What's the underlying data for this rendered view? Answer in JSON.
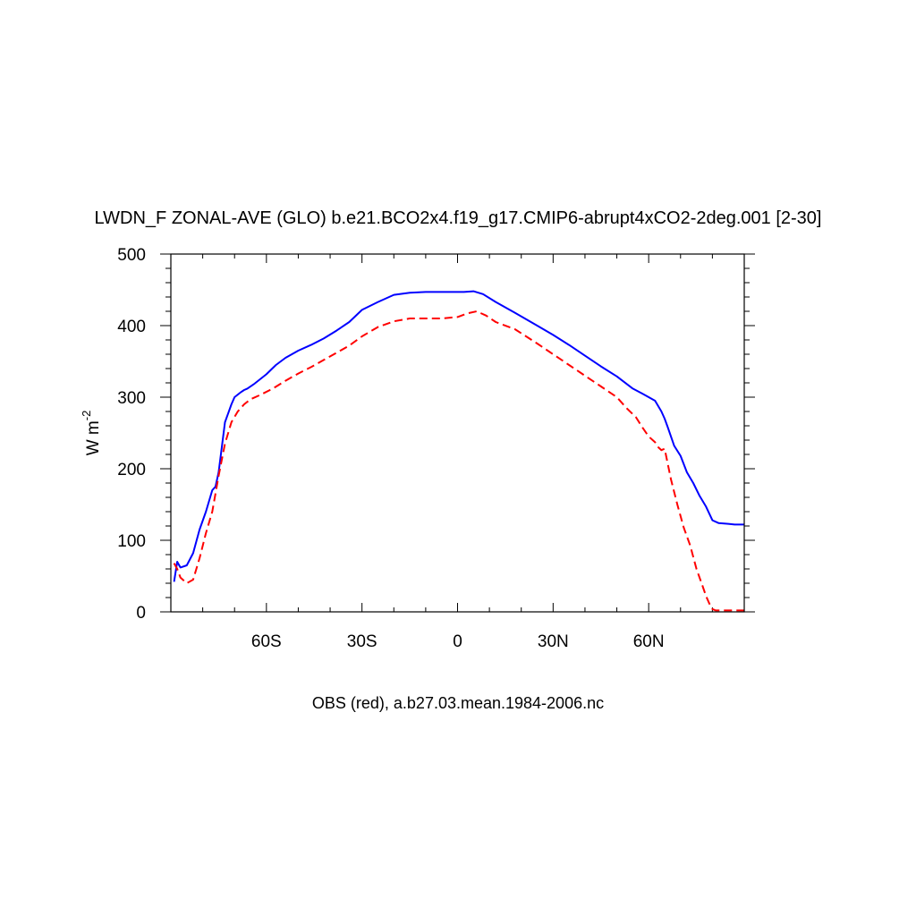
{
  "chart_data": {
    "type": "line",
    "title": "LWDN_F ZONAL-AVE (GLO) b.e21.BCO2x4.f19_g17.CMIP6-abrupt4xCO2-2deg.001 [2-30]",
    "subtitle": "OBS (red), a.b27.03.mean.1984-2006.nc",
    "ylabel": "W m",
    "ylabel_superscript": "-2",
    "xlim": [
      -90,
      90
    ],
    "ylim": [
      0,
      500
    ],
    "x_ticks": [
      -60,
      -30,
      0,
      30,
      60
    ],
    "x_tick_labels": [
      "60S",
      "30S",
      "0",
      "30N",
      "60N"
    ],
    "y_ticks": [
      0,
      100,
      200,
      300,
      400,
      500
    ],
    "y_tick_labels": [
      "0",
      "100",
      "200",
      "300",
      "400",
      "500"
    ],
    "grid": false,
    "series": [
      {
        "color": "#0000ff",
        "dash": "solid",
        "x": [
          -89,
          -88,
          -87,
          -85,
          -83,
          -81,
          -79,
          -77,
          -76,
          -75,
          -73,
          -71,
          -70,
          -68,
          -67,
          -66,
          -64,
          -62,
          -60,
          -57,
          -54,
          -50,
          -46,
          -42,
          -38,
          -34,
          -30,
          -25,
          -20,
          -15,
          -10,
          -5,
          0,
          2,
          5,
          8,
          12,
          18,
          25,
          30,
          35,
          40,
          45,
          50,
          55,
          58,
          60,
          62,
          64,
          65,
          66,
          68,
          70,
          72,
          74,
          76,
          78,
          80,
          82,
          85,
          87,
          90
        ],
        "y": [
          42,
          70,
          62,
          65,
          82,
          115,
          140,
          170,
          175,
          195,
          265,
          290,
          300,
          307,
          310,
          312,
          318,
          325,
          332,
          345,
          355,
          365,
          373,
          382,
          393,
          405,
          422,
          433,
          443,
          446,
          447,
          447,
          447,
          447,
          448,
          444,
          433,
          418,
          400,
          387,
          373,
          358,
          343,
          329,
          312,
          305,
          300,
          295,
          280,
          270,
          258,
          232,
          218,
          195,
          180,
          162,
          147,
          128,
          124,
          123,
          122,
          122
        ]
      },
      {
        "color": "#ff0000",
        "dash": "dashed",
        "x": [
          -89,
          -88,
          -87,
          -85,
          -83,
          -81,
          -79,
          -77,
          -75,
          -73,
          -71,
          -69,
          -67,
          -65,
          -62,
          -58,
          -54,
          -50,
          -46,
          -42,
          -38,
          -34,
          -30,
          -25,
          -20,
          -15,
          -10,
          -5,
          0,
          3,
          6,
          9,
          12,
          18,
          25,
          30,
          35,
          40,
          45,
          50,
          53,
          56,
          58,
          60,
          62,
          63,
          64,
          65,
          67,
          69,
          71,
          73,
          75,
          77,
          78,
          79,
          80,
          81,
          82,
          85,
          90
        ],
        "y": [
          68,
          60,
          48,
          40,
          45,
          75,
          110,
          140,
          190,
          235,
          265,
          280,
          290,
          297,
          303,
          312,
          323,
          333,
          342,
          352,
          362,
          372,
          385,
          398,
          406,
          410,
          410,
          410,
          412,
          417,
          420,
          414,
          405,
          395,
          375,
          360,
          345,
          330,
          315,
          300,
          285,
          272,
          258,
          245,
          237,
          230,
          226,
          228,
          185,
          150,
          118,
          93,
          60,
          35,
          22,
          12,
          4,
          2,
          2,
          2,
          2
        ]
      }
    ]
  }
}
